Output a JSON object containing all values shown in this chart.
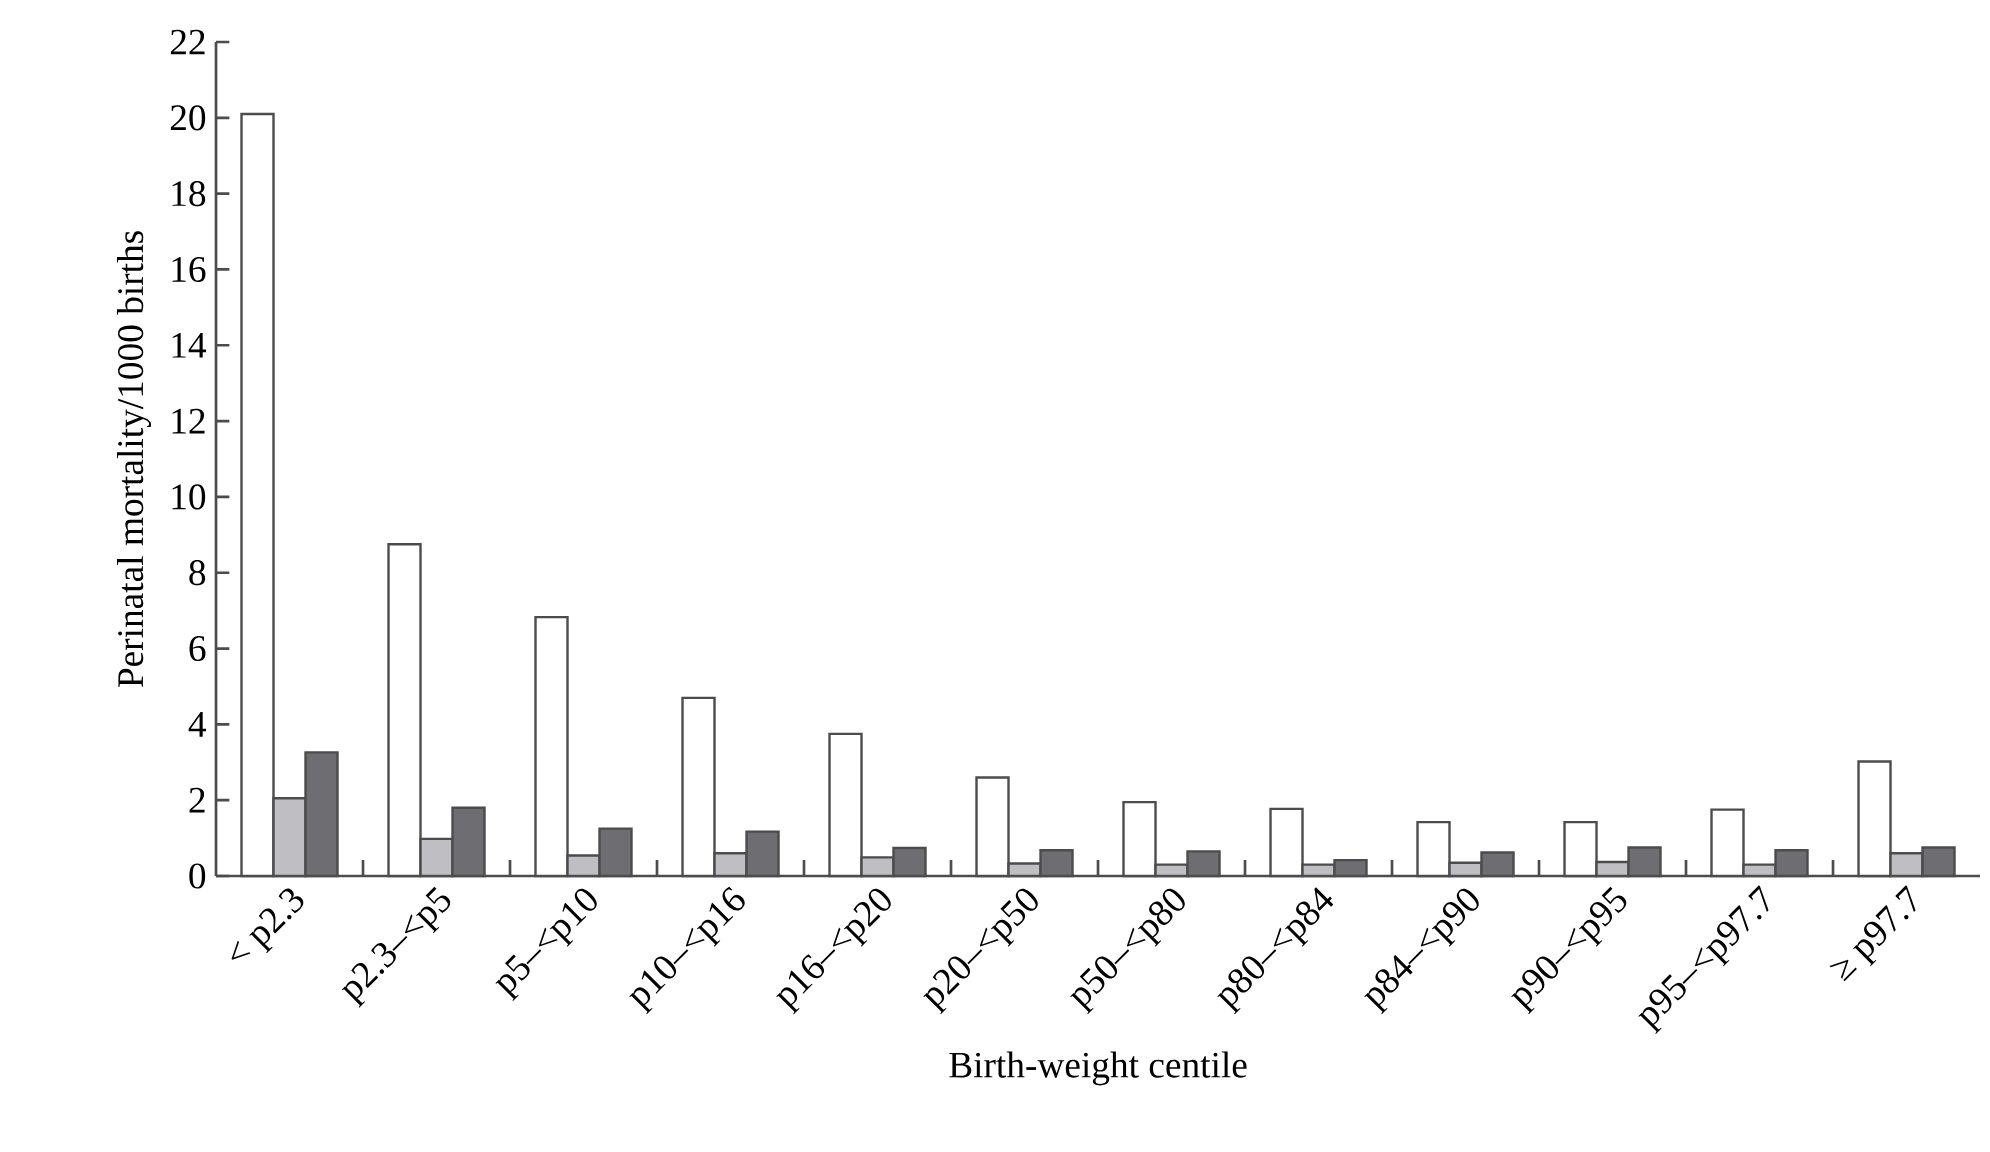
{
  "chart_data": {
    "type": "bar",
    "xlabel": "Birth-weight centile",
    "ylabel": "Perinatal mortality/1000 births",
    "categories": [
      "< p2.3",
      "p2.3–<p5",
      "p5–<p10",
      "p10–<p16",
      "p16–<p20",
      "p20–<p50",
      "p50–<p80",
      "p80–<p84",
      "p84–<p90",
      "p90–<p95",
      "p95–<p97.7",
      "≥ p97.7"
    ],
    "series": [
      {
        "color": "#ffffff",
        "values": [
          20.1,
          8.75,
          6.83,
          4.7,
          3.75,
          2.6,
          1.95,
          1.77,
          1.42,
          1.42,
          1.75,
          3.02
        ]
      },
      {
        "color": "#bfbfc3",
        "values": [
          2.05,
          0.98,
          0.54,
          0.6,
          0.49,
          0.33,
          0.3,
          0.3,
          0.35,
          0.37,
          0.3,
          0.6
        ]
      },
      {
        "color": "#6e6e72",
        "values": [
          3.26,
          1.8,
          1.25,
          1.17,
          0.74,
          0.68,
          0.65,
          0.42,
          0.62,
          0.75,
          0.68,
          0.75
        ]
      }
    ],
    "ylim": [
      0,
      22
    ],
    "yticks": [
      0,
      2,
      4,
      6,
      8,
      10,
      12,
      14,
      16,
      18,
      20,
      22
    ]
  }
}
